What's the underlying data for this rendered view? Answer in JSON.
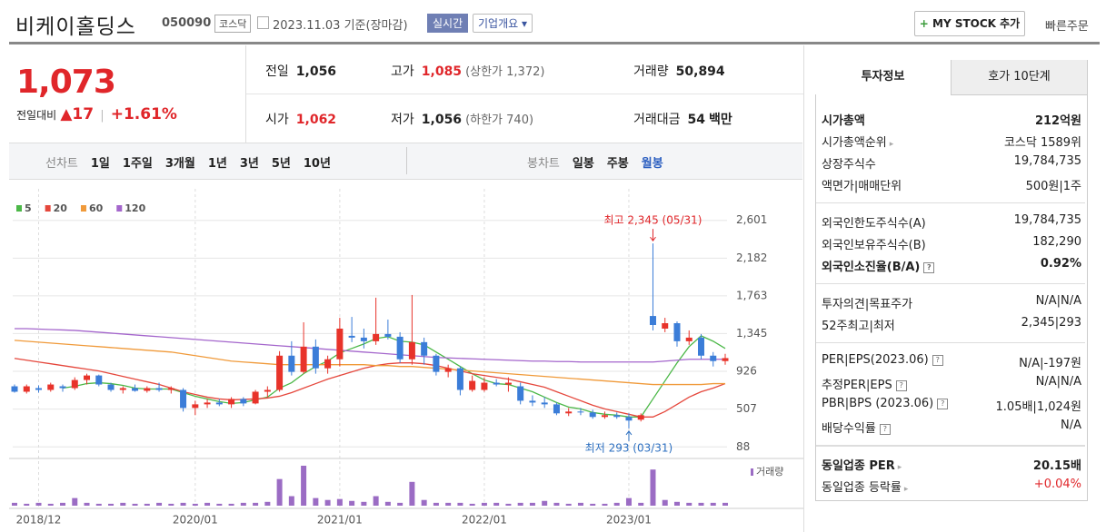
{
  "header": {
    "title": "비케이홀딩스",
    "code": "050090",
    "market": "코스닥",
    "date": "2023.11.03",
    "basis": "기준(장마감)",
    "realtime": "실시간",
    "overview": "기업개요",
    "mystock": "MY STOCK 추가",
    "quick_order": "빠른주문"
  },
  "quote": {
    "price": "1,073",
    "change_label": "전일대비",
    "change": "17",
    "change_rate": "+1.61%"
  },
  "stats": [
    [
      {
        "label": "전일",
        "value": "1,056"
      },
      {
        "label": "고가",
        "value": "1,085",
        "note": "(상한가 1,372)",
        "color": "#e0262a"
      },
      {
        "label": "거래량",
        "value": "50,894"
      }
    ],
    [
      {
        "label": "시가",
        "value": "1,062",
        "color": "#e0262a"
      },
      {
        "label": "저가",
        "value": "1,056",
        "note": "(하한가 740)"
      },
      {
        "label": "거래대금",
        "value": "54",
        "unit": "백만"
      }
    ]
  ],
  "toolbar": {
    "line_label": "선차트",
    "line_periods": [
      "1일",
      "1주일",
      "3개월",
      "1년",
      "3년",
      "5년",
      "10년"
    ],
    "candle_label": "봉차트",
    "candle_periods": [
      "일봉",
      "주봉",
      "월봉"
    ]
  },
  "chart_data": {
    "type": "candlestick",
    "categories": [
      null,
      null,
      "2018/12",
      null,
      null,
      null,
      null,
      null,
      null,
      null,
      null,
      null,
      null,
      null,
      null,
      "2020/01",
      null,
      null,
      null,
      null,
      null,
      null,
      null,
      null,
      null,
      null,
      null,
      "2021/01",
      null,
      null,
      null,
      null,
      null,
      null,
      null,
      null,
      null,
      null,
      null,
      "2022/01",
      null,
      null,
      null,
      null,
      null,
      null,
      null,
      null,
      null,
      null,
      null,
      "2023/01",
      null,
      null,
      null,
      null,
      null,
      null,
      null,
      null
    ],
    "open": [
      760,
      700,
      740,
      720,
      760,
      740,
      830,
      880,
      780,
      720,
      740,
      710,
      740,
      720,
      720,
      520,
      560,
      580,
      560,
      620,
      570,
      700,
      720,
      1100,
      920,
      1200,
      960,
      1060,
      1320,
      1300,
      1260,
      1340,
      1310,
      1060,
      1250,
      1100,
      920,
      960,
      720,
      720,
      800,
      780,
      760,
      600,
      580,
      560,
      460,
      480,
      470,
      420,
      440,
      420,
      390,
      1540,
      1400,
      1460,
      1260,
      1300,
      1100,
      1040
    ],
    "high": [
      780,
      780,
      770,
      800,
      780,
      860,
      900,
      890,
      800,
      760,
      780,
      760,
      800,
      760,
      740,
      600,
      620,
      620,
      640,
      640,
      720,
      760,
      1150,
      1260,
      1470,
      1280,
      1100,
      1520,
      1530,
      1400,
      1743,
      1500,
      1360,
      1773,
      1300,
      1120,
      1000,
      980,
      880,
      860,
      840,
      860,
      800,
      660,
      640,
      580,
      520,
      520,
      500,
      480,
      470,
      460,
      460,
      2345,
      1520,
      1480,
      1380,
      1340,
      1140,
      1120
    ],
    "low": [
      690,
      680,
      690,
      700,
      700,
      720,
      780,
      760,
      700,
      680,
      700,
      690,
      700,
      680,
      480,
      440,
      520,
      540,
      520,
      540,
      560,
      640,
      700,
      880,
      900,
      900,
      900,
      980,
      1250,
      1180,
      1220,
      1280,
      1020,
      1000,
      1000,
      880,
      860,
      660,
      700,
      700,
      760,
      700,
      560,
      540,
      520,
      440,
      430,
      440,
      400,
      400,
      400,
      293,
      370,
      1380,
      1360,
      1200,
      1220,
      1060,
      980,
      1000
    ],
    "close": [
      700,
      760,
      720,
      780,
      740,
      830,
      880,
      780,
      720,
      740,
      710,
      740,
      720,
      740,
      520,
      560,
      580,
      560,
      620,
      570,
      700,
      720,
      1100,
      920,
      1200,
      960,
      1060,
      1400,
      1300,
      1260,
      1340,
      1310,
      1060,
      1250,
      1100,
      920,
      960,
      720,
      820,
      800,
      780,
      800,
      600,
      580,
      560,
      460,
      480,
      470,
      420,
      440,
      420,
      380,
      440,
      1440,
      1460,
      1260,
      1300,
      1100,
      1040,
      1073
    ],
    "up_color": "#e8332a",
    "down_color": "#3b7dd8",
    "ylim": [
      0,
      2880
    ],
    "yticks": [
      88,
      507,
      926,
      {
        "value": 1345,
        "label": "1,345"
      },
      {
        "value": 1763,
        "label": "1,763"
      },
      {
        "value": 2182,
        "label": "2,182"
      },
      {
        "value": 2601,
        "label": "2,601"
      }
    ],
    "grid": true,
    "moving_averages": [
      {
        "name": "5",
        "color": "#4cb848",
        "values": [
          null,
          null,
          null,
          null,
          740,
          760,
          790,
          800,
          790,
          770,
          740,
          730,
          730,
          730,
          690,
          650,
          620,
          590,
          570,
          580,
          610,
          640,
          740,
          800,
          900,
          980,
          1040,
          1130,
          1180,
          1230,
          1290,
          1310,
          1260,
          1250,
          1220,
          1140,
          1060,
          980,
          900,
          830,
          790,
          780,
          740,
          700,
          640,
          580,
          530,
          510,
          470,
          450,
          440,
          420,
          420,
          620,
          820,
          1020,
          1200,
          1320,
          1260,
          1180
        ]
      },
      {
        "name": "20",
        "color": "#e5473c",
        "values": [
          1070,
          1050,
          1030,
          1010,
          990,
          970,
          950,
          930,
          900,
          870,
          840,
          810,
          780,
          740,
          700,
          670,
          640,
          620,
          610,
          615,
          620,
          630,
          650,
          690,
          740,
          790,
          840,
          880,
          920,
          960,
          990,
          1010,
          1020,
          1020,
          1010,
          990,
          960,
          930,
          900,
          880,
          860,
          840,
          810,
          780,
          750,
          700,
          650,
          600,
          550,
          510,
          480,
          450,
          420,
          420,
          480,
          560,
          640,
          700,
          740,
          790
        ]
      },
      {
        "name": "60",
        "color": "#f09a3a",
        "values": [
          1270,
          1260,
          1250,
          1240,
          1230,
          1220,
          1210,
          1200,
          1190,
          1180,
          1170,
          1160,
          1150,
          1140,
          1120,
          1100,
          1080,
          1060,
          1040,
          1030,
          1020,
          1010,
          1000,
          1000,
          1000,
          1000,
          1000,
          1000,
          1000,
          1000,
          990,
          990,
          980,
          980,
          970,
          960,
          950,
          940,
          930,
          920,
          910,
          900,
          890,
          880,
          870,
          860,
          850,
          840,
          830,
          820,
          810,
          800,
          790,
          780,
          780,
          780,
          780,
          780,
          790,
          790
        ]
      },
      {
        "name": "120",
        "color": "#a466cc",
        "values": [
          1400,
          1400,
          1395,
          1390,
          1385,
          1380,
          1370,
          1360,
          1350,
          1340,
          1330,
          1320,
          1310,
          1300,
          1290,
          1280,
          1270,
          1260,
          1250,
          1240,
          1230,
          1220,
          1210,
          1200,
          1190,
          1180,
          1170,
          1160,
          1150,
          1140,
          1130,
          1120,
          1110,
          1100,
          1090,
          1080,
          1075,
          1070,
          1065,
          1060,
          1055,
          1050,
          1045,
          1040,
          1040,
          1035,
          1035,
          1030,
          1030,
          1030,
          1030,
          1030,
          1030,
          1030,
          1040,
          1050,
          1060,
          1060,
          1060,
          1060
        ]
      }
    ],
    "volume": {
      "name": "거래량",
      "color": "#9b6cc4",
      "values": [
        3,
        2,
        3,
        2,
        3,
        8,
        3,
        2,
        2,
        3,
        2,
        2,
        3,
        2,
        3,
        2,
        3,
        2,
        2,
        3,
        3,
        4,
        28,
        10,
        42,
        8,
        6,
        7,
        5,
        4,
        10,
        4,
        3,
        25,
        6,
        3,
        3,
        3,
        2,
        3,
        3,
        2,
        3,
        3,
        5,
        3,
        2,
        3,
        2,
        2,
        3,
        8,
        3,
        38,
        6,
        4,
        3,
        3,
        3,
        3
      ]
    },
    "annotations": {
      "high": "최고 2,345 (05/31)",
      "low": "최저 293 (03/31)"
    }
  },
  "info": {
    "tabs": [
      "투자정보",
      "호가 10단계"
    ],
    "groups": [
      [
        {
          "label": [
            "시가총액"
          ],
          "value": [
            "212억원"
          ],
          "bold": true
        },
        {
          "label": [
            "시가총액순위"
          ],
          "value": [
            "코스닥 1589위"
          ],
          "link": true
        },
        {
          "label": [
            "상장주식수"
          ],
          "value": [
            "19,784,735"
          ]
        },
        {
          "label": [
            "액면가",
            "매매단위"
          ],
          "value": [
            "500원",
            "1주"
          ]
        }
      ],
      [
        {
          "label": [
            "외국인한도주식수(A)"
          ],
          "value": [
            "19,784,735"
          ]
        },
        {
          "label": [
            "외국인보유주식수(B)"
          ],
          "value": [
            "182,290"
          ]
        },
        {
          "label": [
            "외국인소진율(B/A)"
          ],
          "value": [
            "0.92%"
          ],
          "bold": true,
          "help": true
        }
      ],
      [
        {
          "label": [
            "투자의견",
            "목표주가"
          ],
          "value": [
            "N/A",
            "N/A"
          ]
        },
        {
          "label": [
            "52주최고",
            "최저"
          ],
          "value": [
            "2,345",
            "293"
          ]
        }
      ],
      [
        {
          "label": [
            "PER",
            "EPS(2023.06)"
          ],
          "value": [
            "N/A",
            "-197원"
          ],
          "help": true
        },
        {
          "label": [
            "추정PER",
            "EPS"
          ],
          "value": [
            "N/A",
            "N/A"
          ],
          "help": true
        },
        {
          "label": [
            "PBR",
            "BPS (2023.06)"
          ],
          "value": [
            "1.05배",
            "1,024원"
          ],
          "help": true
        },
        {
          "label": [
            "배당수익률"
          ],
          "value": [
            "N/A"
          ],
          "help": true
        }
      ],
      [
        {
          "label": [
            "동일업종 PER"
          ],
          "value": [
            "20.15배"
          ],
          "bold": true,
          "link": true
        },
        {
          "label": [
            "동일업종 등락률"
          ],
          "value": [
            "+0.04%"
          ],
          "link": true,
          "color": "#e0262a"
        }
      ]
    ]
  }
}
